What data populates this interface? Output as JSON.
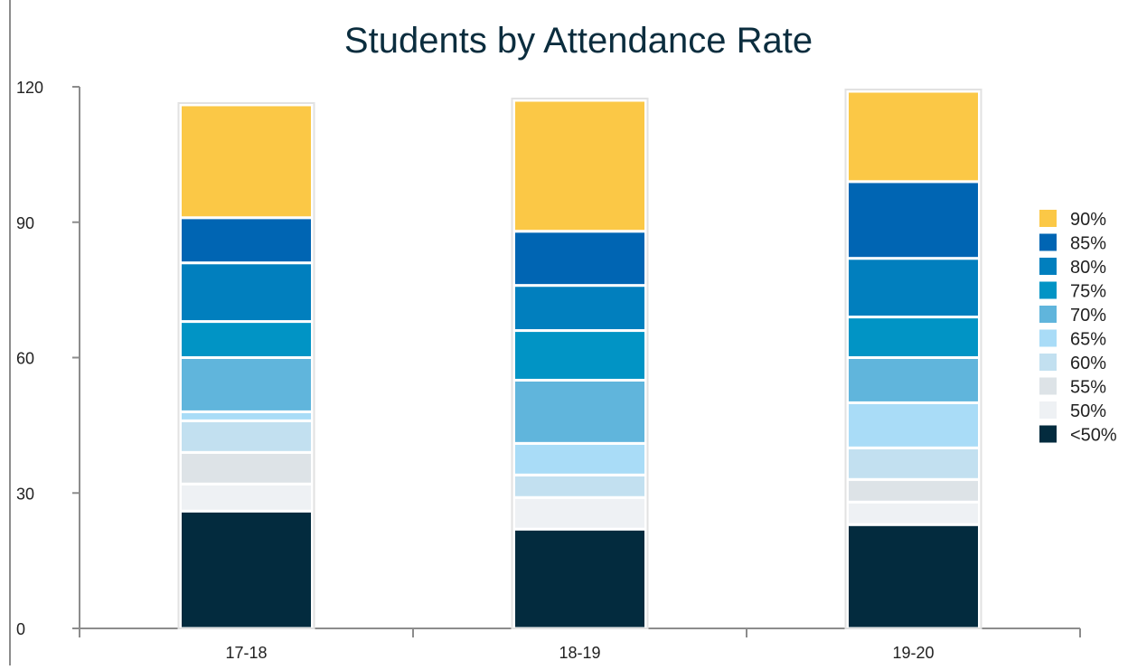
{
  "chart_data": {
    "type": "bar",
    "stacked": true,
    "title": "Students by Attendance Rate",
    "xlabel": "",
    "ylabel": "",
    "categories": [
      "17-18",
      "18-19",
      "19-20"
    ],
    "ylim": [
      0,
      120
    ],
    "yticks": [
      0,
      30,
      60,
      90,
      120
    ],
    "grid": false,
    "legend_position": "right",
    "series": [
      {
        "name": "<50%",
        "color": "#032b3e",
        "values": [
          26,
          22,
          23
        ]
      },
      {
        "name": "50%",
        "color": "#eef1f4",
        "values": [
          6,
          7,
          5
        ]
      },
      {
        "name": "55%",
        "color": "#dde3e7",
        "values": [
          7,
          0,
          5
        ]
      },
      {
        "name": "60%",
        "color": "#c2e0f0",
        "values": [
          7,
          5,
          7
        ]
      },
      {
        "name": "65%",
        "color": "#a9dcf7",
        "values": [
          2,
          7,
          10
        ]
      },
      {
        "name": "70%",
        "color": "#60b5dc",
        "values": [
          12,
          14,
          10
        ]
      },
      {
        "name": "75%",
        "color": "#0194c5",
        "values": [
          8,
          11,
          9
        ]
      },
      {
        "name": "80%",
        "color": "#017fbe",
        "values": [
          13,
          10,
          13
        ]
      },
      {
        "name": "85%",
        "color": "#0065b3",
        "values": [
          10,
          12,
          17
        ]
      },
      {
        "name": "90%",
        "color": "#fbc846",
        "values": [
          25,
          29,
          20
        ]
      }
    ]
  }
}
